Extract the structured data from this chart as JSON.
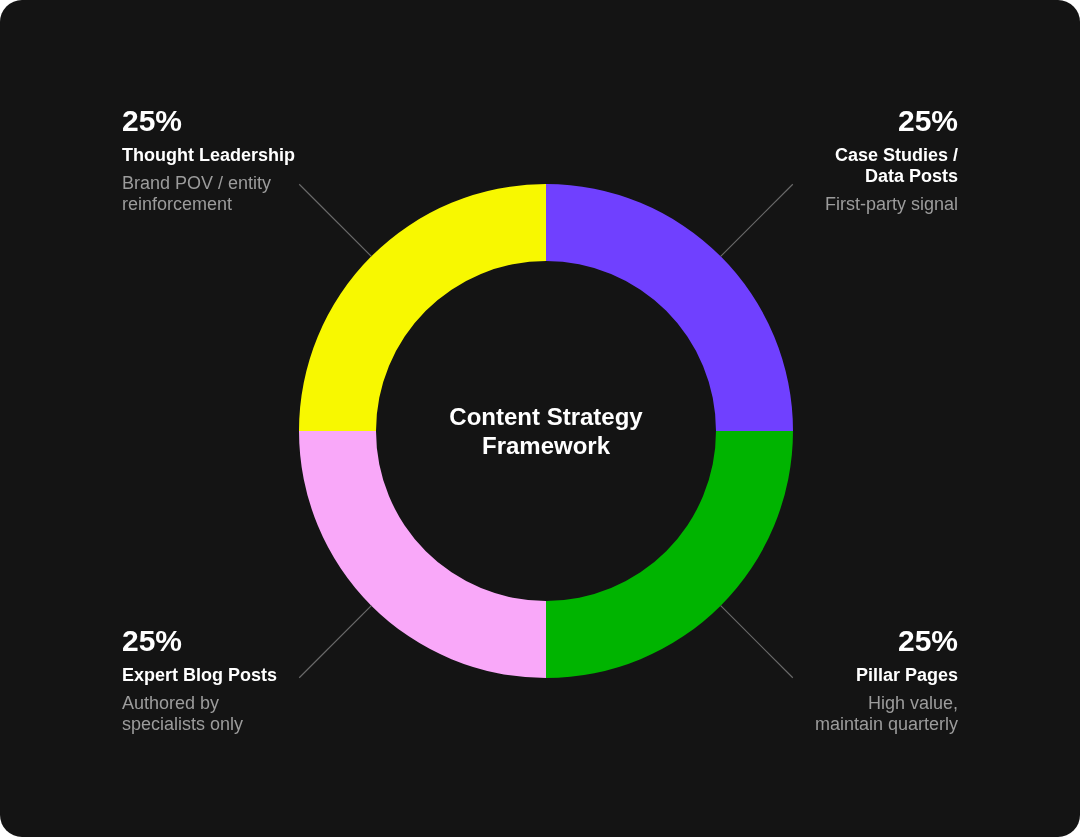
{
  "chart_data": {
    "type": "donut",
    "title": "Content Strategy Framework",
    "categories": [
      "Case Studies / Data Posts",
      "Pillar Pages",
      "Expert Blog Posts",
      "Thought Leadership"
    ],
    "values": [
      25,
      25,
      25,
      25
    ],
    "colors": [
      "#7040ff",
      "#00b400",
      "#f9a8f9",
      "#f8f800"
    ],
    "value_labels": [
      "25%",
      "25%",
      "25%",
      "25%"
    ],
    "annotations": [
      "First-party signal",
      "High value, maintain quarterly",
      "Authored by specialists only",
      "Brand POV / entity reinforcement"
    ]
  }
}
